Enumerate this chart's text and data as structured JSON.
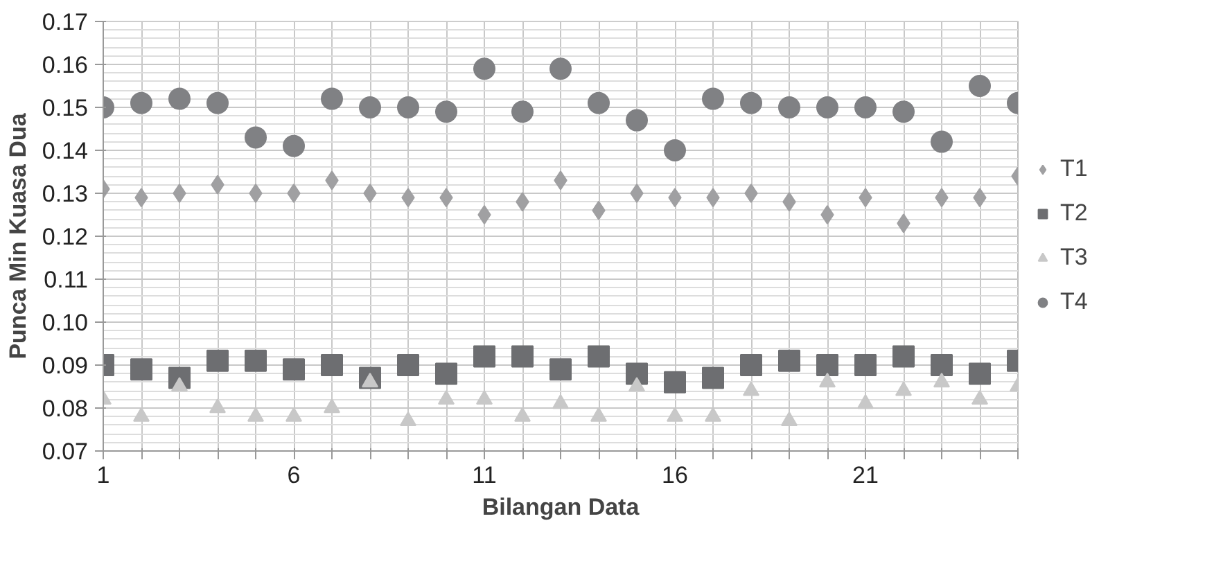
{
  "chart_data": {
    "type": "scatter",
    "xlabel": "Bilangan Data",
    "ylabel": "Punca Min Kuasa Dua",
    "x": [
      1,
      2,
      3,
      4,
      5,
      6,
      7,
      8,
      9,
      10,
      11,
      12,
      13,
      14,
      15,
      16,
      17,
      18,
      19,
      20,
      21,
      22,
      23,
      24,
      25
    ],
    "series": [
      {
        "name": "T1",
        "color": "#a0a0a2",
        "marker": "diamond",
        "values": [
          0.131,
          0.129,
          0.13,
          0.132,
          0.13,
          0.13,
          0.133,
          0.13,
          0.129,
          0.129,
          0.125,
          0.128,
          0.133,
          0.126,
          0.13,
          0.129,
          0.129,
          0.13,
          0.128,
          0.125,
          0.129,
          0.123,
          0.129,
          0.129,
          0.134
        ]
      },
      {
        "name": "T2",
        "color": "#6d6e71",
        "marker": "square",
        "values": [
          0.09,
          0.089,
          0.087,
          0.091,
          0.091,
          0.089,
          0.09,
          0.087,
          0.09,
          0.088,
          0.092,
          0.092,
          0.089,
          0.092,
          0.088,
          0.086,
          0.087,
          0.09,
          0.091,
          0.09,
          0.09,
          0.092,
          0.09,
          0.088,
          0.091
        ]
      },
      {
        "name": "T3",
        "color": "#c8c8c8",
        "marker": "triangle",
        "values": [
          0.082,
          0.078,
          0.085,
          0.08,
          0.078,
          0.078,
          0.08,
          0.086,
          0.077,
          0.082,
          0.082,
          0.078,
          0.081,
          0.078,
          0.085,
          0.078,
          0.078,
          0.084,
          0.077,
          0.086,
          0.081,
          0.084,
          0.086,
          0.082,
          0.085
        ]
      },
      {
        "name": "T4",
        "color": "#808184",
        "marker": "circle",
        "values": [
          0.15,
          0.151,
          0.152,
          0.151,
          0.143,
          0.141,
          0.152,
          0.15,
          0.15,
          0.149,
          0.159,
          0.149,
          0.159,
          0.151,
          0.147,
          0.14,
          0.152,
          0.151,
          0.15,
          0.15,
          0.15,
          0.149,
          0.142,
          0.155,
          0.151
        ]
      }
    ],
    "xlim": [
      1,
      25
    ],
    "xticks": [
      1,
      {
        "value": 2,
        "label": null
      },
      {
        "value": 3,
        "label": null
      },
      {
        "value": 4,
        "label": null
      },
      {
        "value": 5,
        "label": null
      },
      6,
      {
        "value": 7,
        "label": null
      },
      {
        "value": 8,
        "label": null
      },
      {
        "value": 9,
        "label": null
      },
      {
        "value": 10,
        "label": null
      },
      11,
      {
        "value": 12,
        "label": null
      },
      {
        "value": 13,
        "label": null
      },
      {
        "value": 14,
        "label": null
      },
      {
        "value": 15,
        "label": null
      },
      16,
      {
        "value": 17,
        "label": null
      },
      {
        "value": 18,
        "label": null
      },
      {
        "value": 19,
        "label": null
      },
      {
        "value": 20,
        "label": null
      },
      21,
      {
        "value": 22,
        "label": null
      },
      {
        "value": 23,
        "label": null
      },
      {
        "value": 24,
        "label": null
      },
      {
        "value": 25,
        "label": null
      }
    ],
    "ylim": [
      0.07,
      0.17
    ],
    "yticks": [
      {
        "value": 0.07,
        "label": "0.07"
      },
      {
        "value": 0.08,
        "label": "0.08"
      },
      {
        "value": 0.09,
        "label": "0.09"
      },
      {
        "value": 0.1,
        "label": "0.10"
      },
      {
        "value": 0.11,
        "label": "0.11"
      },
      {
        "value": 0.12,
        "label": "0.12"
      },
      {
        "value": 0.13,
        "label": "0.13"
      },
      {
        "value": 0.14,
        "label": "0.14"
      },
      {
        "value": 0.15,
        "label": "0.15"
      },
      {
        "value": 0.16,
        "label": "0.16"
      },
      {
        "value": 0.17,
        "label": "0.17"
      }
    ],
    "grid": true,
    "legend": "right"
  }
}
